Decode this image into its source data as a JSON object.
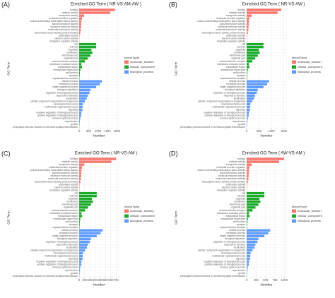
{
  "chart_data": [
    {
      "type": "barh",
      "panel_label": "(A)",
      "title": "Enriched GO Term ( NR-VS-AM-AW )",
      "xlabel": "Number",
      "ylabel": "GO Term",
      "legend_title": "factor(Type)",
      "grid": true,
      "xlim": [
        0,
        2100
      ],
      "xticks": [
        0,
        500,
        1000,
        1500,
        2000
      ],
      "series": [
        {
          "name": "molecular_function",
          "color": "#f8766d",
          "categories": [
            "binding",
            "catalytic activity",
            "transporter activity",
            "molecular function regulator",
            "nucleic acid binding transcription factor activity",
            "signal transducer activity",
            "structural molecule activity",
            "molecular transducer activity",
            "transcription factor activity, protein binding",
            "antioxidant activity",
            "electron carrier activity",
            "translation regulator activity"
          ],
          "values": [
            1900,
            1650,
            260,
            150,
            120,
            110,
            100,
            90,
            60,
            20,
            15,
            10
          ]
        },
        {
          "name": "cellular_component",
          "color": "#1aab2a",
          "categories": [
            "cell",
            "cell part",
            "organelle",
            "membrane",
            "membrane part",
            "organelle part",
            "macromolecular complex",
            "membrane-enclosed lumen",
            "extracellular region",
            "extracellular region part",
            "cell junction",
            "synapse",
            "supramolecular complex"
          ],
          "values": [
            900,
            900,
            650,
            700,
            600,
            450,
            300,
            120,
            150,
            60,
            40,
            30,
            20
          ]
        },
        {
          "name": "biological_process",
          "color": "#619cff",
          "categories": [
            "cellular process",
            "metabolic process",
            "single-organism process",
            "biological regulation",
            "regulation of biological process",
            "response to stimulus",
            "localization",
            "cellular component organization or biogenesis",
            "developmental process",
            "multicellular organismal process",
            "signaling",
            "negative regulation of biological process",
            "positive regulation of biological process",
            "immune system process",
            "reproduction",
            "growth",
            "presynaptic process involved in chemical synaptic transmission"
          ],
          "values": [
            1200,
            1100,
            900,
            600,
            550,
            450,
            400,
            300,
            200,
            180,
            170,
            120,
            110,
            60,
            40,
            25,
            10
          ]
        }
      ]
    },
    {
      "type": "barh",
      "panel_label": "(B)",
      "title": "Enriched GO Term ( NR-VS-AW )",
      "xlabel": "Number",
      "ylabel": "GO Term",
      "legend_title": "factor(Type)",
      "grid": true,
      "xlim": [
        0,
        1600
      ],
      "xticks": [
        0,
        500,
        1000,
        1500
      ],
      "series": [
        {
          "name": "molecular_function",
          "color": "#f8766d",
          "categories": [
            "binding",
            "catalytic activity",
            "transporter activity",
            "molecular function regulator",
            "nucleic acid binding transcription factor activity",
            "signal transducer activity",
            "structural molecule activity",
            "molecular transducer activity",
            "transcription factor activity, protein binding",
            "antioxidant activity",
            "electron carrier activity",
            "translation regulator activity"
          ],
          "values": [
            1400,
            1250,
            200,
            110,
            90,
            85,
            75,
            70,
            45,
            15,
            11,
            8
          ]
        },
        {
          "name": "cellular_component",
          "color": "#1aab2a",
          "categories": [
            "cell",
            "cell part",
            "organelle",
            "membrane",
            "membrane part",
            "organelle part",
            "macromolecular complex",
            "membrane-enclosed lumen",
            "extracellular region",
            "extracellular region part",
            "cell junction",
            "synapse",
            "supramolecular complex"
          ],
          "values": [
            680,
            680,
            490,
            530,
            450,
            340,
            225,
            90,
            110,
            45,
            30,
            22,
            15
          ]
        },
        {
          "name": "biological_process",
          "color": "#619cff",
          "categories": [
            "cellular process",
            "metabolic process",
            "single-organism process",
            "biological regulation",
            "regulation of biological process",
            "response to stimulus",
            "localization",
            "cellular component organization or biogenesis",
            "developmental process",
            "multicellular organismal process",
            "signaling",
            "negative regulation of biological process",
            "positive regulation of biological process",
            "immune system process",
            "reproduction",
            "growth",
            "presynaptic process involved in chemical synaptic transmission"
          ],
          "values": [
            900,
            830,
            680,
            450,
            410,
            340,
            300,
            225,
            150,
            135,
            128,
            90,
            83,
            45,
            30,
            19,
            8
          ]
        }
      ]
    },
    {
      "type": "barh",
      "panel_label": "(C)",
      "title": "Enriched GO Term ( NR-VS-AM )",
      "xlabel": "Number",
      "ylabel": "GO Term",
      "legend_title": "factor(Type)",
      "grid": true,
      "xlim": [
        0,
        750
      ],
      "xticks": [
        0,
        100,
        200,
        300,
        400,
        500,
        600,
        700
      ],
      "series": [
        {
          "name": "molecular_function",
          "color": "#f8766d",
          "categories": [
            "binding",
            "catalytic activity",
            "transporter activity",
            "molecular function regulator",
            "nucleic acid binding transcription factor activity",
            "signal transducer activity",
            "structural molecule activity",
            "molecular transducer activity",
            "transcription factor activity, protein binding",
            "antioxidant activity",
            "electron carrier activity",
            "translation regulator activity"
          ],
          "values": [
            700,
            610,
            96,
            56,
            44,
            41,
            37,
            33,
            22,
            7,
            6,
            4
          ]
        },
        {
          "name": "cellular_component",
          "color": "#1aab2a",
          "categories": [
            "cell",
            "cell part",
            "organelle",
            "membrane",
            "membrane part",
            "organelle part",
            "macromolecular complex",
            "membrane-enclosed lumen",
            "extracellular region",
            "extracellular region part",
            "cell junction",
            "synapse",
            "supramolecular complex"
          ],
          "values": [
            333,
            333,
            240,
            259,
            222,
            167,
            111,
            44,
            56,
            22,
            15,
            11,
            7
          ]
        },
        {
          "name": "biological_process",
          "color": "#619cff",
          "categories": [
            "cellular process",
            "metabolic process",
            "single-organism process",
            "biological regulation",
            "regulation of biological process",
            "response to stimulus",
            "localization",
            "cellular component organization or biogenesis",
            "developmental process",
            "multicellular organismal process",
            "signaling",
            "negative regulation of biological process",
            "positive regulation of biological process",
            "immune system process",
            "reproduction",
            "growth",
            "presynaptic process involved in chemical synaptic transmission"
          ],
          "values": [
            444,
            407,
            333,
            222,
            204,
            167,
            148,
            111,
            74,
            67,
            63,
            44,
            41,
            22,
            15,
            9,
            4
          ]
        }
      ]
    },
    {
      "type": "barh",
      "panel_label": "(D)",
      "title": "Enriched GO Term ( AW-VS-AM )",
      "xlabel": "Number",
      "ylabel": "GO Term",
      "legend_title": "factor(Type)",
      "grid": true,
      "xlim": [
        0,
        1050
      ],
      "xticks": [
        0,
        250,
        500,
        750,
        1000
      ],
      "series": [
        {
          "name": "molecular_function",
          "color": "#f8766d",
          "categories": [
            "binding",
            "catalytic activity",
            "transporter activity",
            "molecular function regulator",
            "nucleic acid binding transcription factor activity",
            "signal transducer activity",
            "structural molecule activity",
            "molecular transducer activity",
            "transcription factor activity, protein binding",
            "antioxidant activity",
            "electron carrier activity",
            "translation regulator activity"
          ],
          "values": [
            990,
            860,
            135,
            78,
            62,
            57,
            52,
            47,
            31,
            10,
            8,
            5
          ]
        },
        {
          "name": "cellular_component",
          "color": "#1aab2a",
          "categories": [
            "cell",
            "cell part",
            "organelle",
            "membrane",
            "membrane part",
            "organelle part",
            "macromolecular complex",
            "membrane-enclosed lumen",
            "extracellular region",
            "extracellular region part",
            "cell junction",
            "synapse",
            "supramolecular complex"
          ],
          "values": [
            470,
            470,
            340,
            365,
            312,
            234,
            156,
            62,
            78,
            31,
            21,
            16,
            10
          ]
        },
        {
          "name": "biological_process",
          "color": "#619cff",
          "categories": [
            "cellular process",
            "metabolic process",
            "single-organism process",
            "biological regulation",
            "regulation of biological process",
            "response to stimulus",
            "localization",
            "cellular component organization or biogenesis",
            "developmental process",
            "multicellular organismal process",
            "signaling",
            "negative regulation of biological process",
            "positive regulation of biological process",
            "immune system process",
            "reproduction",
            "growth",
            "presynaptic process involved in chemical synaptic transmission"
          ],
          "values": [
            625,
            572,
            470,
            312,
            286,
            234,
            208,
            156,
            104,
            94,
            88,
            62,
            57,
            31,
            21,
            13,
            5
          ]
        }
      ]
    }
  ]
}
